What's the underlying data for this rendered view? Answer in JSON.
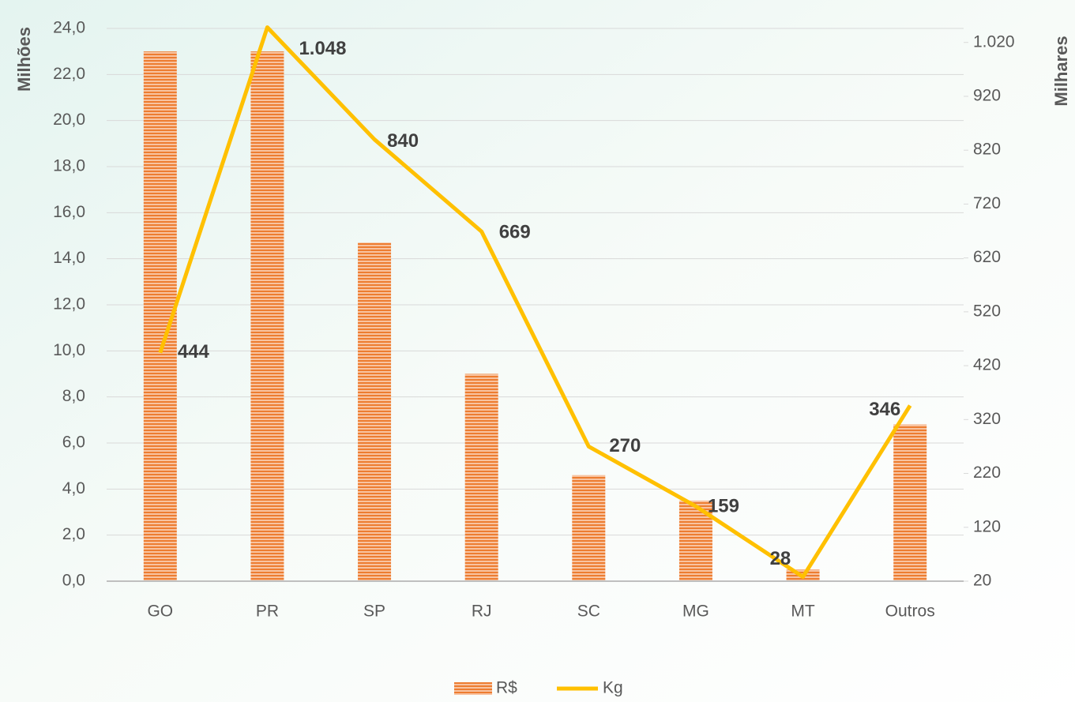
{
  "chart_data": {
    "type": "bar",
    "y_label": "Milhões",
    "y2_label": "Milhares",
    "categories": [
      "GO",
      "PR",
      "SP",
      "RJ",
      "SC",
      "MG",
      "MT",
      "Outros"
    ],
    "series": [
      {
        "name": "R$",
        "type": "bar",
        "color": "#ed7d31",
        "values": [
          23.0,
          23.0,
          14.7,
          9.0,
          4.6,
          3.5,
          0.5,
          6.8
        ]
      },
      {
        "name": "Kg",
        "type": "line",
        "axis": "y2",
        "color": "#ffc000",
        "values": [
          444,
          1048,
          840,
          669,
          270,
          159,
          28,
          346
        ],
        "value_labels": [
          "444",
          "1.048",
          "840",
          "669",
          "270",
          "159",
          "28",
          "346"
        ]
      }
    ],
    "ylim": [
      0,
      24
    ],
    "yticks": [
      {
        "value": 0,
        "label": "0,0"
      },
      {
        "value": 2,
        "label": "2,0"
      },
      {
        "value": 4,
        "label": "4,0"
      },
      {
        "value": 6,
        "label": "6,0"
      },
      {
        "value": 8,
        "label": "8,0"
      },
      {
        "value": 10,
        "label": "10,0"
      },
      {
        "value": 12,
        "label": "12,0"
      },
      {
        "value": 14,
        "label": "14,0"
      },
      {
        "value": 16,
        "label": "16,0"
      },
      {
        "value": 18,
        "label": "18,0"
      },
      {
        "value": 20,
        "label": "20,0"
      },
      {
        "value": 22,
        "label": "22,0"
      },
      {
        "value": 24,
        "label": "24,0"
      }
    ],
    "y2lim": [
      20,
      1046
    ],
    "y2ticks": [
      20,
      120,
      220,
      320,
      420,
      520,
      620,
      720,
      820,
      920,
      {
        "value": 1020,
        "label": "1.020"
      }
    ],
    "grid": true,
    "legend": "bottom"
  }
}
